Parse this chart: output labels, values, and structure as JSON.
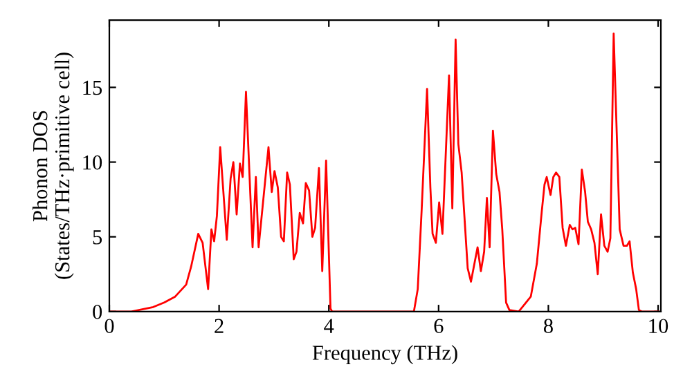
{
  "chart_data": {
    "type": "line",
    "xlabel": "Frequency (THz)",
    "ylabel": "Phonon DOS\n(States/THz·primitive cell)",
    "xlim": [
      0,
      10.05
    ],
    "ylim": [
      0,
      19.5
    ],
    "xticks": [
      0,
      2,
      4,
      6,
      8,
      10
    ],
    "yticks": [
      0,
      5,
      10,
      15
    ],
    "grid": false,
    "marker": "none",
    "line_style": "solid",
    "series": [
      {
        "color": "#ff0000",
        "x": [
          0,
          0.4,
          0.8,
          1.0,
          1.2,
          1.4,
          1.49,
          1.62,
          1.7,
          1.8,
          1.86,
          1.91,
          1.96,
          2.02,
          2.14,
          2.21,
          2.26,
          2.32,
          2.38,
          2.43,
          2.49,
          2.61,
          2.67,
          2.72,
          2.9,
          2.96,
          3.01,
          3.07,
          3.13,
          3.18,
          3.24,
          3.29,
          3.36,
          3.41,
          3.47,
          3.53,
          3.58,
          3.64,
          3.7,
          3.75,
          3.82,
          3.88,
          3.95,
          4.03,
          4.06,
          5.55,
          5.62,
          5.69,
          5.79,
          5.85,
          5.89,
          5.95,
          6.01,
          6.07,
          6.19,
          6.25,
          6.31,
          6.36,
          6.42,
          6.53,
          6.59,
          6.71,
          6.77,
          6.83,
          6.88,
          6.93,
          6.99,
          7.05,
          7.11,
          7.16,
          7.23,
          7.29,
          7.46,
          7.68,
          7.79,
          7.88,
          7.93,
          7.97,
          8.04,
          8.09,
          8.14,
          8.2,
          8.26,
          8.32,
          8.39,
          8.44,
          8.49,
          8.55,
          8.61,
          8.67,
          8.72,
          8.78,
          8.84,
          8.9,
          8.96,
          9.02,
          9.08,
          9.13,
          9.19,
          9.3,
          9.37,
          9.43,
          9.48,
          9.54,
          9.6,
          9.65,
          9.7,
          10.0
        ],
        "values": [
          0,
          0.0,
          0.3,
          0.6,
          1.0,
          1.8,
          3.0,
          5.2,
          4.6,
          1.5,
          5.5,
          4.7,
          6.4,
          11.0,
          4.8,
          8.9,
          10.0,
          6.5,
          9.9,
          9.0,
          14.7,
          4.3,
          9.0,
          4.3,
          11.0,
          8.0,
          9.4,
          8.3,
          5.0,
          4.7,
          9.3,
          8.5,
          3.5,
          4.0,
          6.6,
          5.9,
          8.6,
          8.1,
          5.0,
          5.6,
          9.6,
          2.7,
          10.1,
          0.2,
          0,
          0,
          1.5,
          6.7,
          14.9,
          8.3,
          5.2,
          4.6,
          7.3,
          5.2,
          15.8,
          6.9,
          18.2,
          11.2,
          9.3,
          2.9,
          2.0,
          4.3,
          2.7,
          4.0,
          7.6,
          4.3,
          12.1,
          9.2,
          8.0,
          5.5,
          0.6,
          0.1,
          0,
          1.0,
          3.2,
          6.7,
          8.5,
          9.0,
          7.8,
          9.0,
          9.3,
          9.0,
          5.6,
          4.4,
          5.8,
          5.5,
          5.6,
          4.5,
          9.5,
          8.0,
          6.0,
          5.5,
          4.6,
          2.5,
          6.5,
          4.4,
          4.0,
          4.9,
          18.6,
          5.5,
          4.4,
          4.4,
          4.7,
          2.6,
          1.5,
          0.1,
          0,
          0
        ]
      }
    ]
  }
}
